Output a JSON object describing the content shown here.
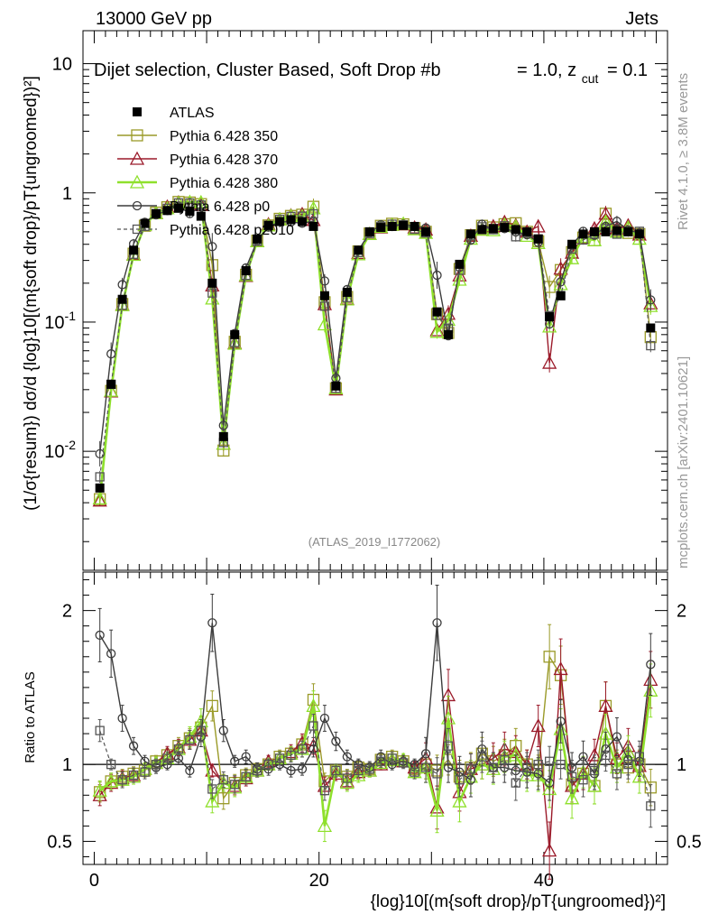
{
  "header": {
    "left": "13000 GeV pp",
    "right": "Jets"
  },
  "plot_title": "Dijet selection, Cluster Based, Soft Drop #b",
  "plot_title_extra": "= 1.0, z",
  "plot_title_sub": "cut",
  "plot_title_tail": "= 0.1",
  "analysis_id": "(ATLAS_2019_I1772062)",
  "side_labels": {
    "rivet": "Rivet 4.1.0, ≥ 3.8M events",
    "mcplots": "mcplots.cern.ch [arXiv:2401.10621]"
  },
  "y_axis_main": "(1/σ{resum}) dσ/d {log}10[(m{soft drop}/pT{ungroomed})²]",
  "y_axis_ratio": "Ratio to ATLAS",
  "x_axis_label": "{log}10[(m{soft drop}/pT{ungroomed})²]",
  "colors": {
    "atlas": "#000000",
    "p350": "#9a9a28",
    "p370": "#9b1a2a",
    "p380": "#8fe02c",
    "p0": "#3c3c3c",
    "p2010": "#555555"
  },
  "chart_data": {
    "type": "line",
    "x": [
      0.5,
      1.5,
      2.5,
      3.5,
      4.5,
      5.5,
      6.5,
      7.5,
      8.5,
      9.5,
      10.5,
      11.5,
      12.5,
      13.5,
      14.5,
      15.5,
      16.5,
      17.5,
      18.5,
      19.5,
      20.5,
      21.5,
      22.5,
      23.5,
      24.5,
      25.5,
      26.5,
      27.5,
      28.5,
      29.5,
      30.5,
      31.5,
      32.5,
      33.5,
      34.5,
      35.5,
      36.5,
      37.5,
      38.5,
      39.5,
      40.5,
      41.5,
      42.5,
      43.5,
      44.5,
      45.5,
      46.5,
      47.5,
      48.5,
      49.5
    ],
    "xlim": [
      -1,
      51
    ],
    "ylim_main": [
      0.0012,
      18
    ],
    "yscale_main": "log",
    "ylim_ratio": [
      0.35,
      2.25
    ],
    "x_ticks": [
      0,
      20,
      40
    ],
    "y_ticks_main": [
      "10",
      "1",
      "10^-1",
      "10^-2"
    ],
    "y_ticks_ratio": [
      "2",
      "1",
      "0.5"
    ],
    "series": [
      {
        "name": "ATLAS",
        "key": "atlas",
        "values": [
          0.0052,
          0.033,
          0.15,
          0.36,
          0.58,
          0.69,
          0.73,
          0.76,
          0.72,
          0.66,
          0.2,
          0.013,
          0.08,
          0.25,
          0.44,
          0.56,
          0.6,
          0.62,
          0.6,
          0.55,
          0.16,
          0.032,
          0.17,
          0.36,
          0.5,
          0.54,
          0.55,
          0.56,
          0.55,
          0.5,
          0.12,
          0.08,
          0.28,
          0.48,
          0.52,
          0.53,
          0.54,
          0.52,
          0.5,
          0.44,
          0.11,
          0.16,
          0.4,
          0.48,
          0.5,
          0.5,
          0.51,
          0.5,
          0.48,
          0.09
        ]
      },
      {
        "name": "Pythia 6.428 350",
        "key": "p350",
        "ratio": [
          0.82,
          0.89,
          0.92,
          0.94,
          0.96,
          1.02,
          1.06,
          1.12,
          1.17,
          1.24,
          1.38,
          0.78,
          0.88,
          0.93,
          0.97,
          1.0,
          1.05,
          1.07,
          1.13,
          1.42,
          0.89,
          0.96,
          0.92,
          0.98,
          0.97,
          1.03,
          1.05,
          1.02,
          0.97,
          1.0,
          0.96,
          1.03,
          0.92,
          0.98,
          1.07,
          1.02,
          1.06,
          1.12,
          1.0,
          0.96,
          1.7,
          1.58,
          0.87,
          0.94,
          0.86,
          1.38,
          1.0,
          0.98,
          1.0,
          0.85
        ]
      },
      {
        "name": "Pythia 6.428 370",
        "key": "p370",
        "ratio": [
          0.8,
          0.88,
          0.91,
          0.93,
          0.97,
          1.01,
          1.07,
          1.11,
          1.16,
          1.22,
          0.96,
          0.88,
          0.86,
          0.91,
          0.96,
          1.02,
          1.04,
          1.08,
          1.14,
          1.12,
          0.86,
          0.94,
          0.89,
          0.95,
          0.96,
          1.0,
          1.03,
          1.02,
          0.98,
          1.04,
          0.72,
          1.45,
          0.82,
          0.97,
          1.0,
          1.04,
          1.1,
          1.08,
          1.0,
          1.25,
          0.44,
          1.62,
          0.86,
          0.94,
          1.06,
          1.38,
          1.04,
          1.12,
          0.99,
          1.55
        ]
      },
      {
        "name": "Pythia 6.428 380",
        "key": "p380",
        "ratio": [
          0.83,
          0.89,
          0.9,
          0.92,
          0.97,
          1.01,
          1.04,
          1.1,
          1.18,
          1.28,
          0.76,
          0.88,
          0.85,
          0.92,
          0.96,
          1.0,
          1.04,
          1.07,
          1.1,
          1.38,
          0.6,
          0.96,
          0.88,
          0.93,
          0.96,
          1.01,
          1.03,
          1.03,
          0.95,
          0.98,
          0.7,
          1.3,
          0.76,
          0.92,
          1.0,
          0.97,
          1.05,
          1.06,
          0.93,
          0.93,
          0.84,
          1.23,
          0.78,
          0.95,
          0.86,
          1.2,
          0.98,
          1.08,
          0.92,
          1.48
        ]
      },
      {
        "name": "Pythia 6.428 p0",
        "key": "p0",
        "ratio": [
          1.84,
          1.72,
          1.3,
          1.12,
          1.02,
          0.98,
          1.0,
          1.04,
          0.96,
          1.18,
          1.92,
          1.22,
          1.02,
          1.05,
          0.97,
          0.97,
          1.0,
          0.96,
          0.97,
          1.1,
          1.3,
          1.15,
          1.05,
          1.0,
          0.98,
          1.05,
          1.0,
          1.02,
          1.0,
          1.07,
          1.92,
          0.98,
          0.95,
          0.9,
          1.1,
          0.98,
          0.98,
          0.96,
          0.95,
          0.94,
          0.88,
          1.28,
          0.98,
          1.05,
          0.94,
          1.1,
          1.18,
          1.03,
          1.02,
          1.65
        ]
      },
      {
        "name": "Pythia 6.428 p2010",
        "key": "p2010",
        "ratio": [
          1.22,
          1.0,
          0.9,
          0.93,
          0.95,
          1.0,
          1.04,
          1.1,
          1.16,
          1.22,
          0.84,
          0.9,
          0.87,
          0.92,
          0.96,
          1.0,
          1.04,
          1.06,
          1.1,
          1.25,
          0.83,
          0.96,
          0.91,
          0.96,
          0.97,
          1.02,
          1.04,
          1.01,
          0.95,
          0.98,
          0.94,
          1.12,
          0.9,
          0.97,
          1.05,
          0.98,
          1.03,
          0.88,
          0.98,
          1.0,
          1.02,
          1.0,
          0.92,
          0.9,
          0.96,
          1.06,
          0.94,
          1.0,
          1.05,
          0.73
        ]
      }
    ]
  }
}
